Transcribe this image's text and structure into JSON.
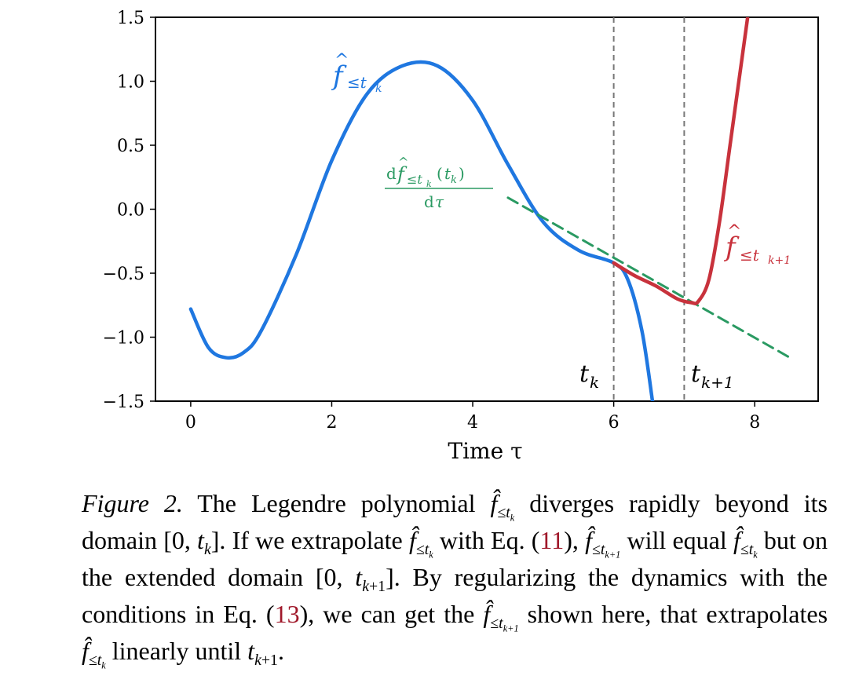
{
  "chart_data": {
    "type": "line",
    "xlabel": "Time τ",
    "ylabel": "",
    "xlim": [
      -0.5,
      8.9
    ],
    "ylim": [
      -1.5,
      1.5
    ],
    "xticks": [
      "0",
      "2",
      "4",
      "6",
      "8"
    ],
    "yticks": [
      "−1.5",
      "−1.0",
      "−0.5",
      "0.0",
      "0.5",
      "1.0",
      "1.5"
    ],
    "grid": false,
    "series": [
      {
        "name": "f̂≤t_k",
        "color": "#1f77e0",
        "x": [
          0,
          0.25,
          0.5,
          0.75,
          1,
          1.5,
          2,
          2.5,
          3,
          3.5,
          4,
          4.5,
          5,
          5.5,
          6,
          6.2,
          6.4,
          6.55
        ],
        "y": [
          -0.78,
          -1.08,
          -1.16,
          -1.12,
          -0.95,
          -0.35,
          0.38,
          0.9,
          1.12,
          1.12,
          0.85,
          0.35,
          -0.1,
          -0.32,
          -0.42,
          -0.55,
          -0.95,
          -1.5
        ]
      },
      {
        "name": "f̂≤t_k+1",
        "color": "#c8323c",
        "x": [
          6,
          6.3,
          6.6,
          6.9,
          7.1,
          7.2,
          7.35,
          7.5,
          7.65,
          7.8,
          7.9
        ],
        "y": [
          -0.42,
          -0.52,
          -0.6,
          -0.7,
          -0.73,
          -0.72,
          -0.55,
          -0.1,
          0.5,
          1.1,
          1.5
        ]
      },
      {
        "name": "tangent",
        "color": "#2a9a62",
        "dashed": true,
        "x": [
          4.5,
          8.5
        ],
        "y": [
          0.09,
          -1.16
        ]
      }
    ],
    "vlines": [
      {
        "x": 6,
        "label": "t_k"
      },
      {
        "x": 7,
        "label": "t_k+1"
      }
    ],
    "annotations": {
      "blue_label": "f̂≤t_k",
      "red_label": "f̂≤t_k+1",
      "tangent_label_num": "df̂≤t_k(t_k)",
      "tangent_label_den": "dτ"
    }
  },
  "caption": {
    "label": "Figure 2.",
    "t1": " The Legendre polynomial ",
    "t2": " diverges rapidly beyond its domain ",
    "t3": ". If we extrapolate ",
    "t4": " with Eq. (",
    "ref1": "11",
    "t5": "), ",
    "t6": " will equal ",
    "t7": " but on the extended domain ",
    "t8": ". By regularizing the dynamics with the conditions in Eq. (",
    "ref2": "13",
    "t9": "), we can get the ",
    "t10": " shown here, that extrapolates ",
    "t11": " linearly until ",
    "t12": "."
  }
}
